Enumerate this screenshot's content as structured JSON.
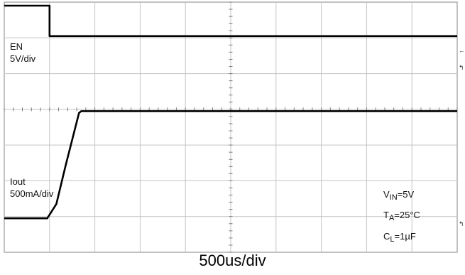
{
  "chart_data": {
    "type": "line",
    "title": "",
    "xlabel": "500us/div",
    "ylabel": "",
    "grid": true,
    "divisions": {
      "x": 10,
      "y": 7
    },
    "channels": [
      {
        "name": "EN",
        "scale": "5V/div",
        "color": "#000000",
        "points_div": [
          [
            0,
            6.9
          ],
          [
            1.0,
            6.9
          ],
          [
            1.0,
            6.05
          ],
          [
            10,
            6.05
          ]
        ]
      },
      {
        "name": "Iout",
        "scale": "500mA/div",
        "color": "#000000",
        "points_div": [
          [
            0,
            0.95
          ],
          [
            0.95,
            0.95
          ],
          [
            1.15,
            1.35
          ],
          [
            1.35,
            2.4
          ],
          [
            1.65,
            3.9
          ],
          [
            1.7,
            3.95
          ],
          [
            10,
            3.95
          ]
        ]
      }
    ]
  },
  "labels": {
    "en_name": "EN",
    "en_scale": "5V/div",
    "iout_name": "Iout",
    "iout_scale": "500mA/div"
  },
  "conditions": {
    "vin_main": "V",
    "vin_sub": "IN",
    "vin_value": "=5V",
    "ta_main": "T",
    "ta_sub": "A",
    "ta_value": "=25°C",
    "cl_main": "C",
    "cl_sub": "L",
    "cl_value": "=1µF"
  },
  "timebase": "500us/div"
}
